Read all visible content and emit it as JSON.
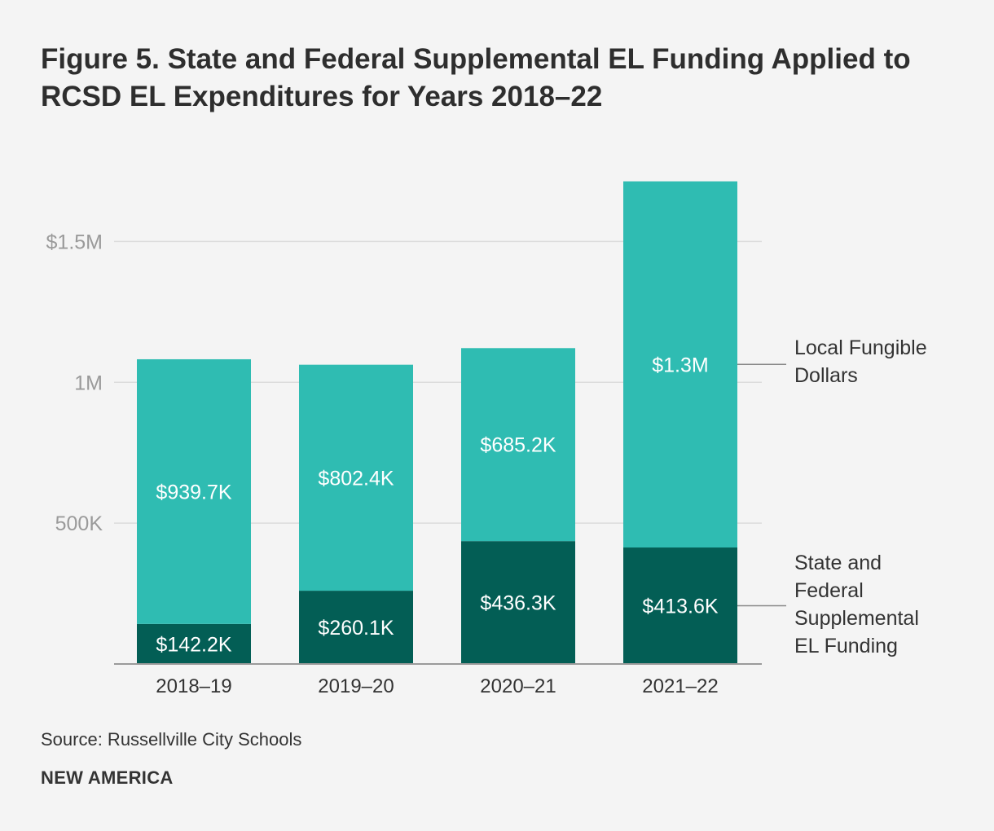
{
  "chart_data": {
    "type": "bar",
    "stacked": true,
    "title": "Figure 5. State and Federal Supplemental EL Funding Applied to RCSD EL Expenditures for Years 2018–22",
    "categories": [
      "2018–19",
      "2019–20",
      "2020–21",
      "2021–22"
    ],
    "series": [
      {
        "name": "State and Federal Supplemental EL Funding",
        "values": [
          142200,
          260100,
          436300,
          413600
        ],
        "labels": [
          "$142.2K",
          "$260.1K",
          "$436.3K",
          "$413.6K"
        ],
        "color": "#035e55"
      },
      {
        "name": "Local Fungible Dollars",
        "values": [
          939700,
          802400,
          685200,
          1300000
        ],
        "labels": [
          "$939.7K",
          "$802.4K",
          "$685.2K",
          "$1.3M"
        ],
        "color": "#2fbcb2"
      }
    ],
    "yticks": [
      500000,
      1000000,
      1500000
    ],
    "ytick_labels": [
      "500K",
      "1M",
      "$1.5M"
    ],
    "ylim": [
      0,
      1750000
    ],
    "grid": true,
    "legend_position": "right"
  },
  "legend": {
    "local": [
      "Local Fungible",
      "Dollars"
    ],
    "state": [
      "State and",
      "Federal",
      "Supplemental",
      "EL Funding"
    ]
  },
  "source": "Source: Russellville City Schools",
  "brand": "NEW AMERICA",
  "colors": {
    "background": "#f4f4f4",
    "grid": "#dcdcdc",
    "tick_text": "#9a9a9a",
    "label_text": "#ffffff",
    "axis": "#9a9a9a"
  }
}
